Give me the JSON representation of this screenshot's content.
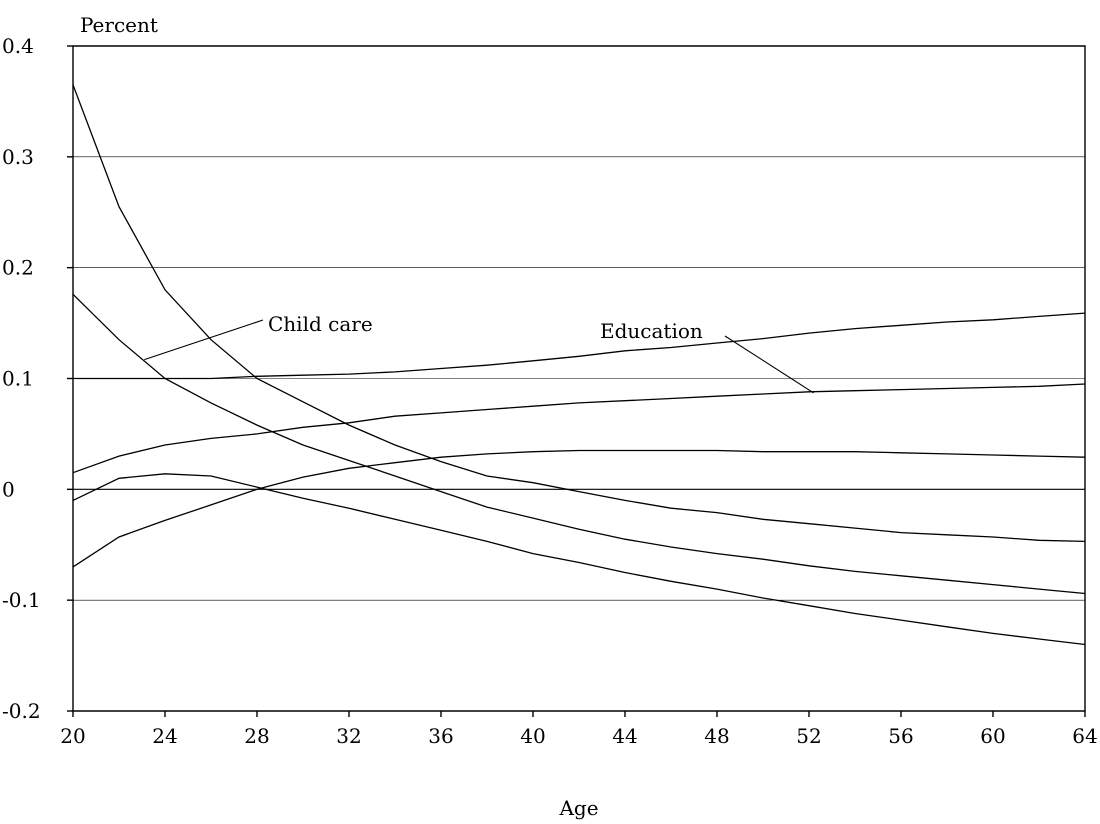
{
  "chart_data": {
    "type": "line",
    "title": "",
    "xlabel": "Age",
    "ylabel": "Percent",
    "xlim": [
      20,
      64
    ],
    "ylim": [
      -0.2,
      0.4
    ],
    "xticks": [
      20,
      24,
      28,
      32,
      36,
      40,
      44,
      48,
      52,
      56,
      60,
      64
    ],
    "xtick_labels": [
      "20",
      "24",
      "28",
      "32",
      "36",
      "40",
      "44",
      "48",
      "52",
      "56",
      "60",
      "64"
    ],
    "yticks": [
      -0.2,
      -0.1,
      0,
      0.1,
      0.2,
      0.3,
      0.4
    ],
    "ytick_labels": [
      "-0.2",
      "-0.1",
      "0",
      "0.1",
      "0.2",
      "0.3",
      "0.4"
    ],
    "grid": "horizontal",
    "legend": "none",
    "annotations": [
      {
        "text": "Child care",
        "x": 23.1,
        "y": 0.117
      },
      {
        "text": "Education",
        "x": 52.2,
        "y": 0.087
      }
    ],
    "series": [
      {
        "x": [
          20,
          22,
          24,
          26,
          28,
          30,
          32,
          34,
          36,
          38,
          40,
          42,
          44,
          46,
          48,
          50,
          52,
          54,
          56,
          58,
          60,
          62,
          64
        ],
        "values": [
          0.365,
          0.255,
          0.18,
          0.135,
          0.1,
          0.079,
          0.058,
          0.04,
          0.025,
          0.012,
          0.006,
          -0.002,
          -0.01,
          -0.017,
          -0.021,
          -0.027,
          -0.031,
          -0.035,
          -0.039,
          -0.041,
          -0.043,
          -0.046,
          -0.047
        ]
      },
      {
        "x": [
          20,
          22,
          24,
          26,
          28,
          30,
          32,
          34,
          36,
          38,
          40,
          42,
          44,
          46,
          48,
          50,
          52,
          54,
          56,
          58,
          60,
          62,
          64
        ],
        "values": [
          0.176,
          0.135,
          0.1,
          0.078,
          0.058,
          0.04,
          0.026,
          0.012,
          -0.002,
          -0.016,
          -0.026,
          -0.036,
          -0.045,
          -0.052,
          -0.058,
          -0.063,
          -0.069,
          -0.074,
          -0.078,
          -0.082,
          -0.086,
          -0.09,
          -0.094
        ]
      },
      {
        "x": [
          20,
          22,
          24,
          26,
          28,
          30,
          32,
          34,
          36,
          38,
          40,
          42,
          44,
          46,
          48,
          50,
          52,
          54,
          56,
          58,
          60,
          62,
          64
        ],
        "values": [
          0.1,
          0.1,
          0.1,
          0.1,
          0.102,
          0.103,
          0.104,
          0.106,
          0.109,
          0.112,
          0.116,
          0.12,
          0.125,
          0.128,
          0.132,
          0.136,
          0.141,
          0.145,
          0.148,
          0.151,
          0.153,
          0.156,
          0.159
        ]
      },
      {
        "x": [
          20,
          22,
          24,
          26,
          28,
          30,
          32,
          34,
          36,
          38,
          40,
          42,
          44,
          46,
          48,
          50,
          52,
          54,
          56,
          58,
          60,
          62,
          64
        ],
        "values": [
          0.015,
          0.03,
          0.04,
          0.046,
          0.05,
          0.056,
          0.06,
          0.066,
          0.069,
          0.072,
          0.075,
          0.078,
          0.08,
          0.082,
          0.084,
          0.086,
          0.088,
          0.089,
          0.09,
          0.091,
          0.092,
          0.093,
          0.095
        ]
      },
      {
        "x": [
          20,
          22,
          24,
          26,
          28,
          30,
          32,
          34,
          36,
          38,
          40,
          42,
          44,
          46,
          48,
          50,
          52,
          54,
          56,
          58,
          60,
          62,
          64
        ],
        "values": [
          -0.01,
          0.01,
          0.014,
          0.012,
          0.002,
          -0.008,
          -0.017,
          -0.027,
          -0.037,
          -0.047,
          -0.058,
          -0.066,
          -0.075,
          -0.083,
          -0.09,
          -0.098,
          -0.105,
          -0.112,
          -0.118,
          -0.124,
          -0.13,
          -0.135,
          -0.14
        ]
      },
      {
        "x": [
          20,
          22,
          24,
          26,
          28,
          30,
          32,
          34,
          36,
          38,
          40,
          42,
          44,
          46,
          48,
          50,
          52,
          54,
          56,
          58,
          60,
          62,
          64
        ],
        "values": [
          -0.07,
          -0.043,
          -0.028,
          -0.014,
          0,
          0.011,
          0.019,
          0.024,
          0.029,
          0.032,
          0.034,
          0.035,
          0.035,
          0.035,
          0.035,
          0.034,
          0.034,
          0.034,
          0.033,
          0.032,
          0.031,
          0.03,
          0.029
        ]
      }
    ]
  }
}
